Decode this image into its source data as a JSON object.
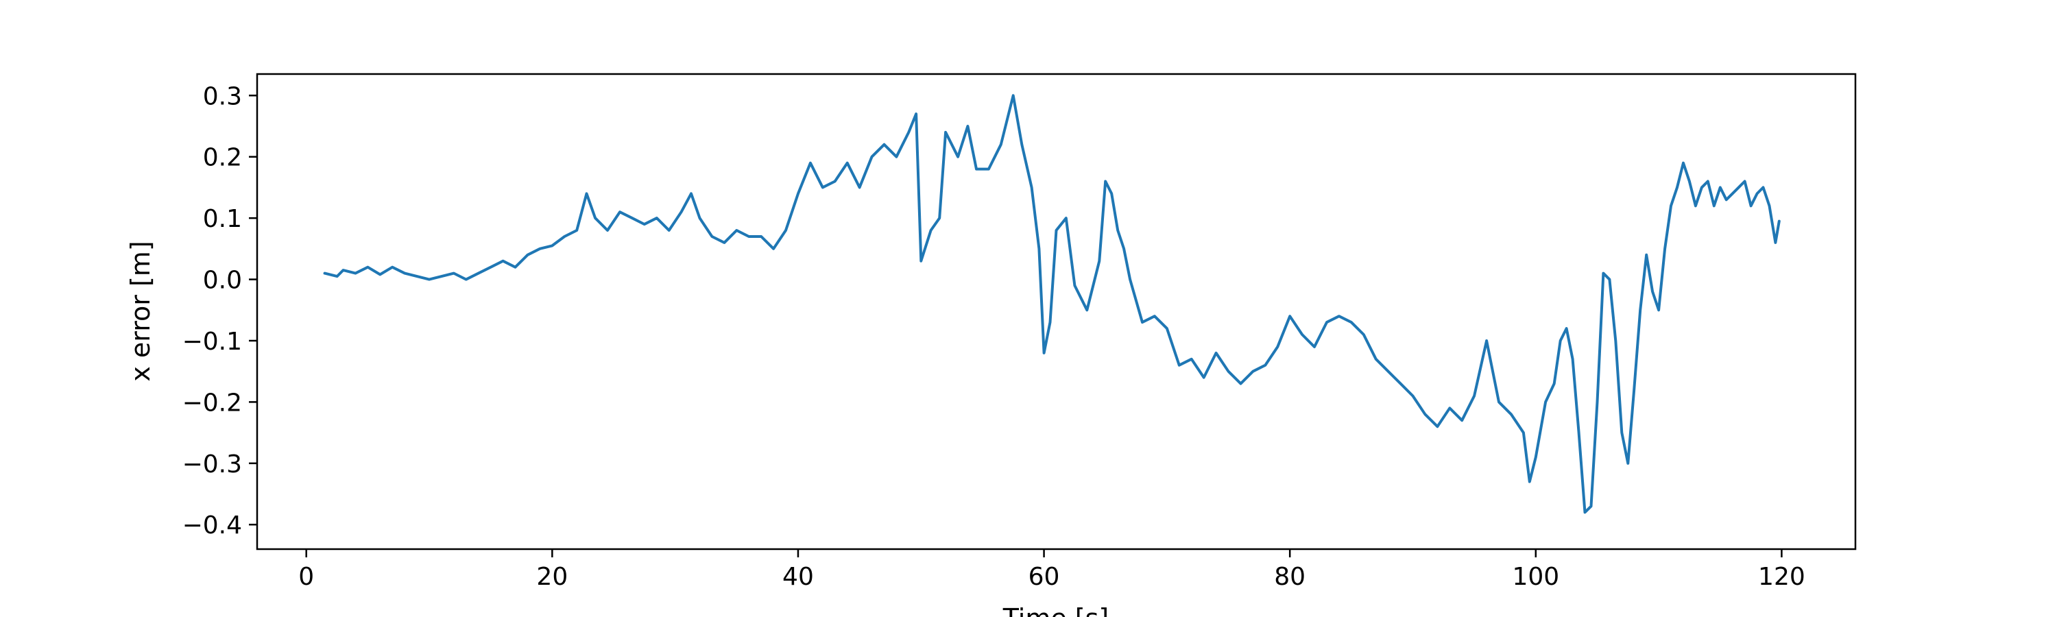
{
  "chart_data": {
    "type": "line",
    "title": "",
    "xlabel": "Time [s]",
    "ylabel": "x error [m]",
    "xlim": [
      -4,
      126
    ],
    "ylim": [
      -0.44,
      0.335
    ],
    "xticks": [
      0,
      20,
      40,
      60,
      80,
      100,
      120
    ],
    "yticks": [
      -0.4,
      -0.3,
      -0.2,
      -0.1,
      0.0,
      0.1,
      0.2,
      0.3
    ],
    "ytick_labels": [
      "−0.4",
      "−0.3",
      "−0.2",
      "−0.1",
      "0.0",
      "0.1",
      "0.2",
      "0.3"
    ],
    "grid": false,
    "series": [
      {
        "color": "#1f77b4",
        "points": [
          [
            1.5,
            0.01
          ],
          [
            2.5,
            0.005
          ],
          [
            3,
            0.015
          ],
          [
            4,
            0.01
          ],
          [
            5,
            0.02
          ],
          [
            6,
            0.008
          ],
          [
            7,
            0.02
          ],
          [
            8,
            0.01
          ],
          [
            9,
            0.005
          ],
          [
            10,
            0.0
          ],
          [
            11,
            0.005
          ],
          [
            12,
            0.01
          ],
          [
            13,
            0.0
          ],
          [
            14,
            0.01
          ],
          [
            15,
            0.02
          ],
          [
            16,
            0.03
          ],
          [
            17,
            0.02
          ],
          [
            18,
            0.04
          ],
          [
            19,
            0.05
          ],
          [
            20,
            0.055
          ],
          [
            21,
            0.07
          ],
          [
            22,
            0.08
          ],
          [
            22.8,
            0.14
          ],
          [
            23.5,
            0.1
          ],
          [
            24.5,
            0.08
          ],
          [
            25.5,
            0.11
          ],
          [
            26.5,
            0.1
          ],
          [
            27.5,
            0.09
          ],
          [
            28.5,
            0.1
          ],
          [
            29.5,
            0.08
          ],
          [
            30.5,
            0.11
          ],
          [
            31.3,
            0.14
          ],
          [
            32,
            0.1
          ],
          [
            33,
            0.07
          ],
          [
            34,
            0.06
          ],
          [
            35,
            0.08
          ],
          [
            36,
            0.07
          ],
          [
            37,
            0.07
          ],
          [
            38,
            0.05
          ],
          [
            39,
            0.08
          ],
          [
            40,
            0.14
          ],
          [
            41,
            0.19
          ],
          [
            42,
            0.15
          ],
          [
            43,
            0.16
          ],
          [
            44,
            0.19
          ],
          [
            45,
            0.15
          ],
          [
            46,
            0.2
          ],
          [
            47,
            0.22
          ],
          [
            48,
            0.2
          ],
          [
            49,
            0.24
          ],
          [
            49.6,
            0.27
          ],
          [
            50,
            0.03
          ],
          [
            50.8,
            0.08
          ],
          [
            51.5,
            0.1
          ],
          [
            52,
            0.24
          ],
          [
            53,
            0.2
          ],
          [
            53.8,
            0.25
          ],
          [
            54.5,
            0.18
          ],
          [
            55.5,
            0.18
          ],
          [
            56.5,
            0.22
          ],
          [
            57.5,
            0.3
          ],
          [
            58.2,
            0.22
          ],
          [
            59,
            0.15
          ],
          [
            59.6,
            0.05
          ],
          [
            60,
            -0.12
          ],
          [
            60.5,
            -0.07
          ],
          [
            61,
            0.08
          ],
          [
            61.8,
            0.1
          ],
          [
            62.5,
            -0.01
          ],
          [
            63.5,
            -0.05
          ],
          [
            64.5,
            0.03
          ],
          [
            65,
            0.16
          ],
          [
            65.5,
            0.14
          ],
          [
            66,
            0.08
          ],
          [
            66.5,
            0.05
          ],
          [
            67,
            0.0
          ],
          [
            68,
            -0.07
          ],
          [
            69,
            -0.06
          ],
          [
            70,
            -0.08
          ],
          [
            71,
            -0.14
          ],
          [
            72,
            -0.13
          ],
          [
            73,
            -0.16
          ],
          [
            74,
            -0.12
          ],
          [
            75,
            -0.15
          ],
          [
            76,
            -0.17
          ],
          [
            77,
            -0.15
          ],
          [
            78,
            -0.14
          ],
          [
            79,
            -0.11
          ],
          [
            80,
            -0.06
          ],
          [
            81,
            -0.09
          ],
          [
            82,
            -0.11
          ],
          [
            83,
            -0.07
          ],
          [
            84,
            -0.06
          ],
          [
            85,
            -0.07
          ],
          [
            86,
            -0.09
          ],
          [
            87,
            -0.13
          ],
          [
            88,
            -0.15
          ],
          [
            89,
            -0.17
          ],
          [
            90,
            -0.19
          ],
          [
            91,
            -0.22
          ],
          [
            92,
            -0.24
          ],
          [
            93,
            -0.21
          ],
          [
            94,
            -0.23
          ],
          [
            95,
            -0.19
          ],
          [
            96,
            -0.1
          ],
          [
            97,
            -0.2
          ],
          [
            98,
            -0.22
          ],
          [
            99,
            -0.25
          ],
          [
            99.5,
            -0.33
          ],
          [
            100,
            -0.29
          ],
          [
            100.8,
            -0.2
          ],
          [
            101.5,
            -0.17
          ],
          [
            102,
            -0.1
          ],
          [
            102.5,
            -0.08
          ],
          [
            103,
            -0.13
          ],
          [
            103.5,
            -0.25
          ],
          [
            104,
            -0.38
          ],
          [
            104.5,
            -0.37
          ],
          [
            105,
            -0.2
          ],
          [
            105.5,
            0.01
          ],
          [
            106,
            0.0
          ],
          [
            106.5,
            -0.1
          ],
          [
            107,
            -0.25
          ],
          [
            107.5,
            -0.3
          ],
          [
            108,
            -0.18
          ],
          [
            108.5,
            -0.05
          ],
          [
            109,
            0.04
          ],
          [
            109.5,
            -0.02
          ],
          [
            110,
            -0.05
          ],
          [
            110.5,
            0.05
          ],
          [
            111,
            0.12
          ],
          [
            111.5,
            0.15
          ],
          [
            112,
            0.19
          ],
          [
            112.5,
            0.16
          ],
          [
            113,
            0.12
          ],
          [
            113.5,
            0.15
          ],
          [
            114,
            0.16
          ],
          [
            114.5,
            0.12
          ],
          [
            115,
            0.15
          ],
          [
            115.5,
            0.13
          ],
          [
            116,
            0.14
          ],
          [
            116.5,
            0.15
          ],
          [
            117,
            0.16
          ],
          [
            117.5,
            0.12
          ],
          [
            118,
            0.14
          ],
          [
            118.5,
            0.15
          ],
          [
            119,
            0.12
          ],
          [
            119.5,
            0.06
          ],
          [
            119.8,
            0.095
          ]
        ]
      }
    ]
  }
}
